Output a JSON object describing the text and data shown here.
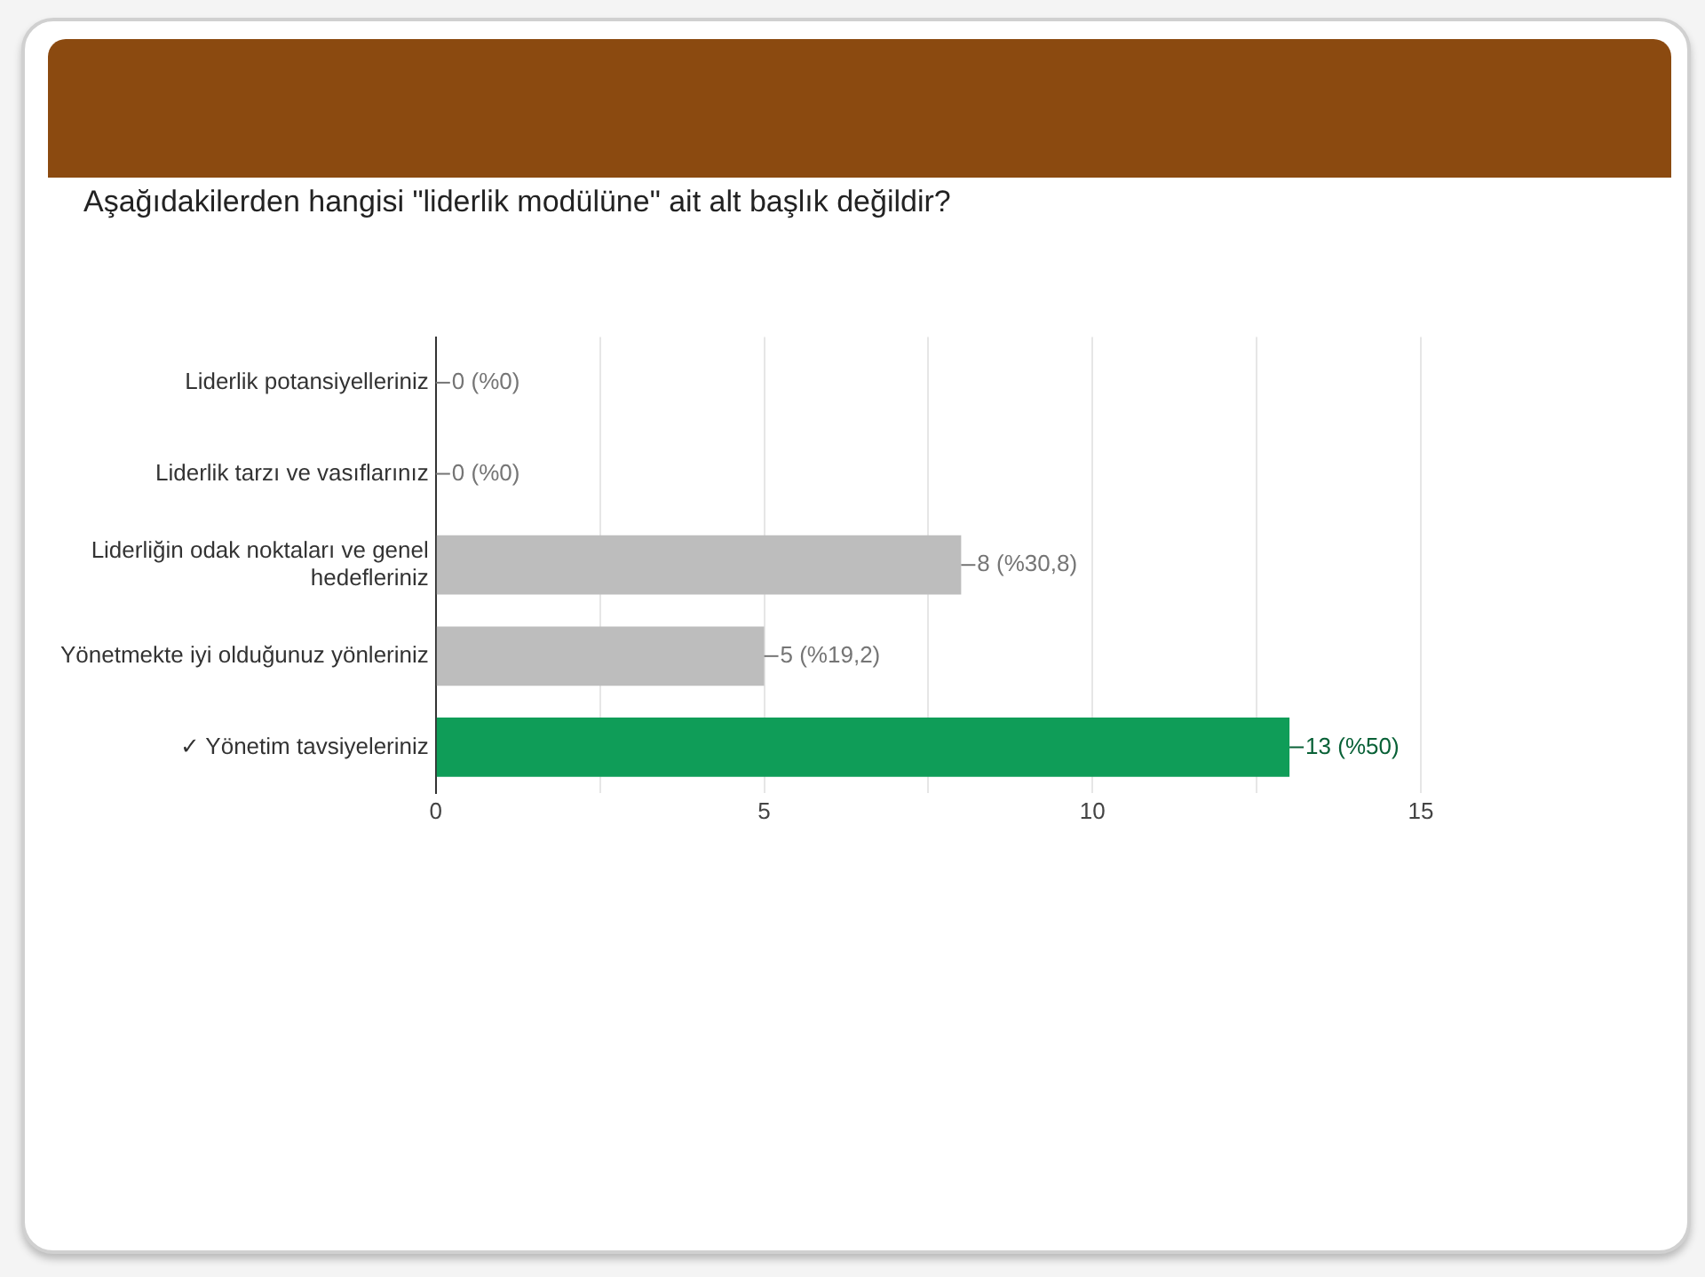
{
  "chart_data": {
    "type": "bar",
    "orientation": "horizontal",
    "title": "Aşağıdakilerden hangisi \"liderlik modülüne\" ait alt başlık değildir?",
    "categories": [
      "Liderlik potansiyelleriniz",
      "Liderlik tarzı ve vasıflarınız",
      "Liderliğin odak noktaları ve genel hedefleriniz",
      "Yönetmekte iyi olduğunuz yönleriniz",
      "✓ Yönetim tavsiyeleriniz"
    ],
    "values": [
      0,
      0,
      8,
      5,
      13
    ],
    "colors": [
      "#bdbdbd",
      "#bdbdbd",
      "#bdbdbd",
      "#bdbdbd",
      "#0f9d58"
    ],
    "value_labels": [
      "0 (%0)",
      "0 (%0)",
      "8 (%30,8)",
      "5 (%19,2)",
      "13 (%50)"
    ],
    "xlim": [
      0,
      15
    ],
    "xticks": [
      0,
      {
        "value": 2.5,
        "label": null
      },
      5,
      {
        "value": 7.5,
        "label": null
      },
      10,
      {
        "value": 12.5,
        "label": null
      },
      15
    ],
    "grid": "x",
    "legend": false
  }
}
